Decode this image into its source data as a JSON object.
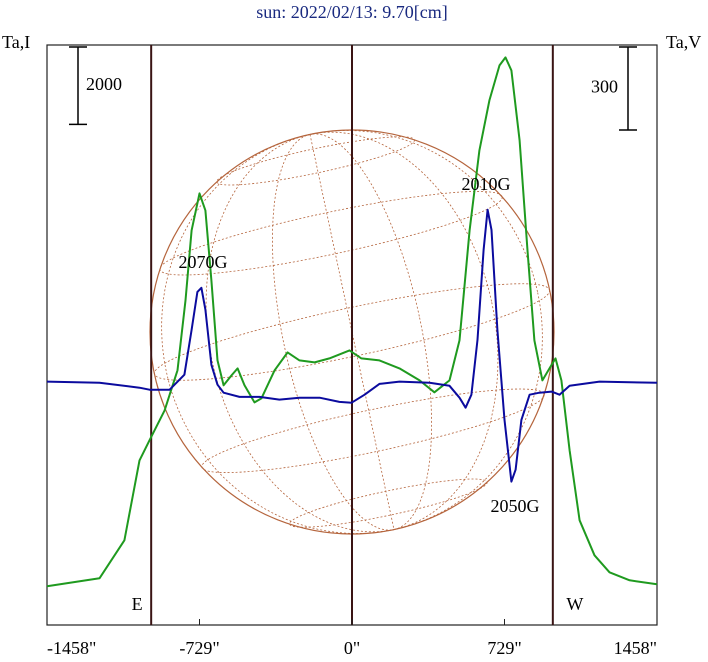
{
  "chart_data": {
    "type": "line",
    "title": "sun: 2022/02/13: 9.70[cm]",
    "ylabel": "Ta,I",
    "y2label": "Ta,V",
    "xlim": [
      -1458,
      1458
    ],
    "ylim": [
      -1000,
      14000
    ],
    "y2lim": [
      -875,
      1220
    ],
    "xticks": [
      {
        "value": -1458,
        "label": "-1458\""
      },
      {
        "value": -729,
        "label": "-729\""
      },
      {
        "value": 0,
        "label": "0\""
      },
      {
        "value": 729,
        "label": "729\""
      },
      {
        "value": 1458,
        "label": "1458\""
      }
    ],
    "vlines": [
      -960,
      0,
      960
    ],
    "limb_labels": [
      "E",
      "W"
    ],
    "scale_bars": [
      {
        "value": 2000,
        "axis": "y"
      },
      {
        "value": 300,
        "axis": "y2"
      }
    ],
    "annotations": [
      "2070G",
      "2010G",
      "2050G"
    ],
    "series": [
      {
        "name": "Ta,I",
        "color": "#1f9a1f",
        "x": [
          -1458,
          -1207,
          -1088,
          -1016,
          -968,
          -896,
          -834,
          -796,
          -767,
          -729,
          -701,
          -672,
          -643,
          -614,
          -576,
          -547,
          -514,
          -466,
          -433,
          -370,
          -308,
          -251,
          -179,
          -108,
          -12,
          45,
          131,
          227,
          323,
          394,
          466,
          514,
          562,
          609,
          657,
          705,
          734,
          762,
          801,
          839,
          872,
          910,
          944,
          973,
          1001,
          1040,
          1088,
          1159,
          1231,
          1327,
          1458
        ],
        "values": [
          0,
          207,
          1190,
          3258,
          3776,
          4551,
          5586,
          7396,
          9206,
          10163,
          9723,
          7913,
          5844,
          5198,
          5456,
          5637,
          5198,
          4758,
          4861,
          5586,
          6051,
          5844,
          5792,
          5896,
          6103,
          5896,
          5844,
          5637,
          5327,
          5017,
          5327,
          6361,
          9206,
          11274,
          12568,
          13473,
          13680,
          13344,
          11533,
          8689,
          6361,
          5327,
          5637,
          5896,
          5327,
          3517,
          1707,
          802,
          362,
          155,
          52
        ]
      },
      {
        "name": "Ta,V",
        "color": "#0b0b9e",
        "axis": "y2",
        "x": [
          -1458,
          -1207,
          -1016,
          -968,
          -872,
          -801,
          -767,
          -739,
          -720,
          -701,
          -672,
          -643,
          -614,
          -538,
          -442,
          -347,
          -251,
          -155,
          -60,
          -2,
          60,
          131,
          227,
          371,
          466,
          514,
          543,
          571,
          600,
          629,
          648,
          667,
          695,
          729,
          762,
          782,
          810,
          849,
          896,
          954,
          992,
          1040,
          1183,
          1458
        ],
        "values": [
          4,
          0,
          -18,
          -25,
          -25,
          29,
          191,
          328,
          343,
          264,
          65,
          -7,
          -36,
          -51,
          -51,
          -61,
          -54,
          -54,
          -69,
          -72,
          -43,
          -4,
          4,
          0,
          -11,
          -54,
          -90,
          -43,
          155,
          480,
          625,
          552,
          191,
          -134,
          -357,
          -314,
          -134,
          -43,
          -36,
          -32,
          -43,
          -11,
          4,
          0
        ]
      }
    ]
  }
}
